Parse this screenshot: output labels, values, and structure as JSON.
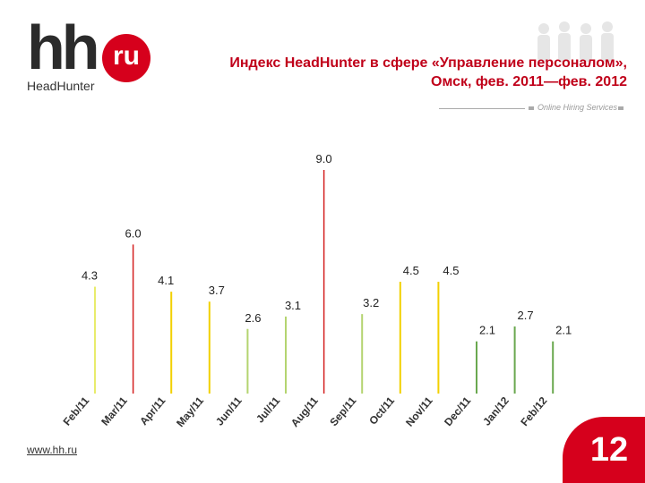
{
  "logo": {
    "main": "hh",
    "badge": "ru",
    "sub": "HeadHunter"
  },
  "title_line1": "Индекс HeadHunter в сфере «Управление персоналом»,",
  "title_line2": "Омск, фев. 2011—фев. 2012",
  "header_note": "Online Hiring Services",
  "site": "www.hh.ru",
  "page": "12",
  "colors": {
    "brand_red": "#d6001c",
    "gray": "#aaaaaa"
  },
  "chart_data": {
    "type": "bar",
    "categories": [
      "Feb/11",
      "Mar/11",
      "Apr/11",
      "May/11",
      "Jun/11",
      "Jul/11",
      "Aug/11",
      "Sep/11",
      "Oct/11",
      "Nov/11",
      "Dec/11",
      "Jan/12",
      "Feb/12"
    ],
    "values": [
      4.3,
      6.0,
      4.1,
      3.7,
      2.6,
      3.1,
      9.0,
      3.2,
      4.5,
      4.5,
      2.1,
      2.7,
      2.1
    ],
    "labels": [
      "4.3",
      "6.0",
      "4.1",
      "3.7",
      "2.6",
      "3.1",
      "9.0",
      "3.2",
      "4.5",
      "4.5",
      "2.1",
      "2.7",
      "2.1"
    ],
    "bar_colors": [
      "#e8ec6c",
      "#d42020",
      "#f2d000",
      "#f2d000",
      "#b4d470",
      "#b4d470",
      "#d42020",
      "#b4d470",
      "#f2d000",
      "#f2d000",
      "#6aa84f",
      "#6aa84f",
      "#6aa84f"
    ],
    "ylim": [
      0,
      9.0
    ],
    "grid": false,
    "legend": false
  }
}
